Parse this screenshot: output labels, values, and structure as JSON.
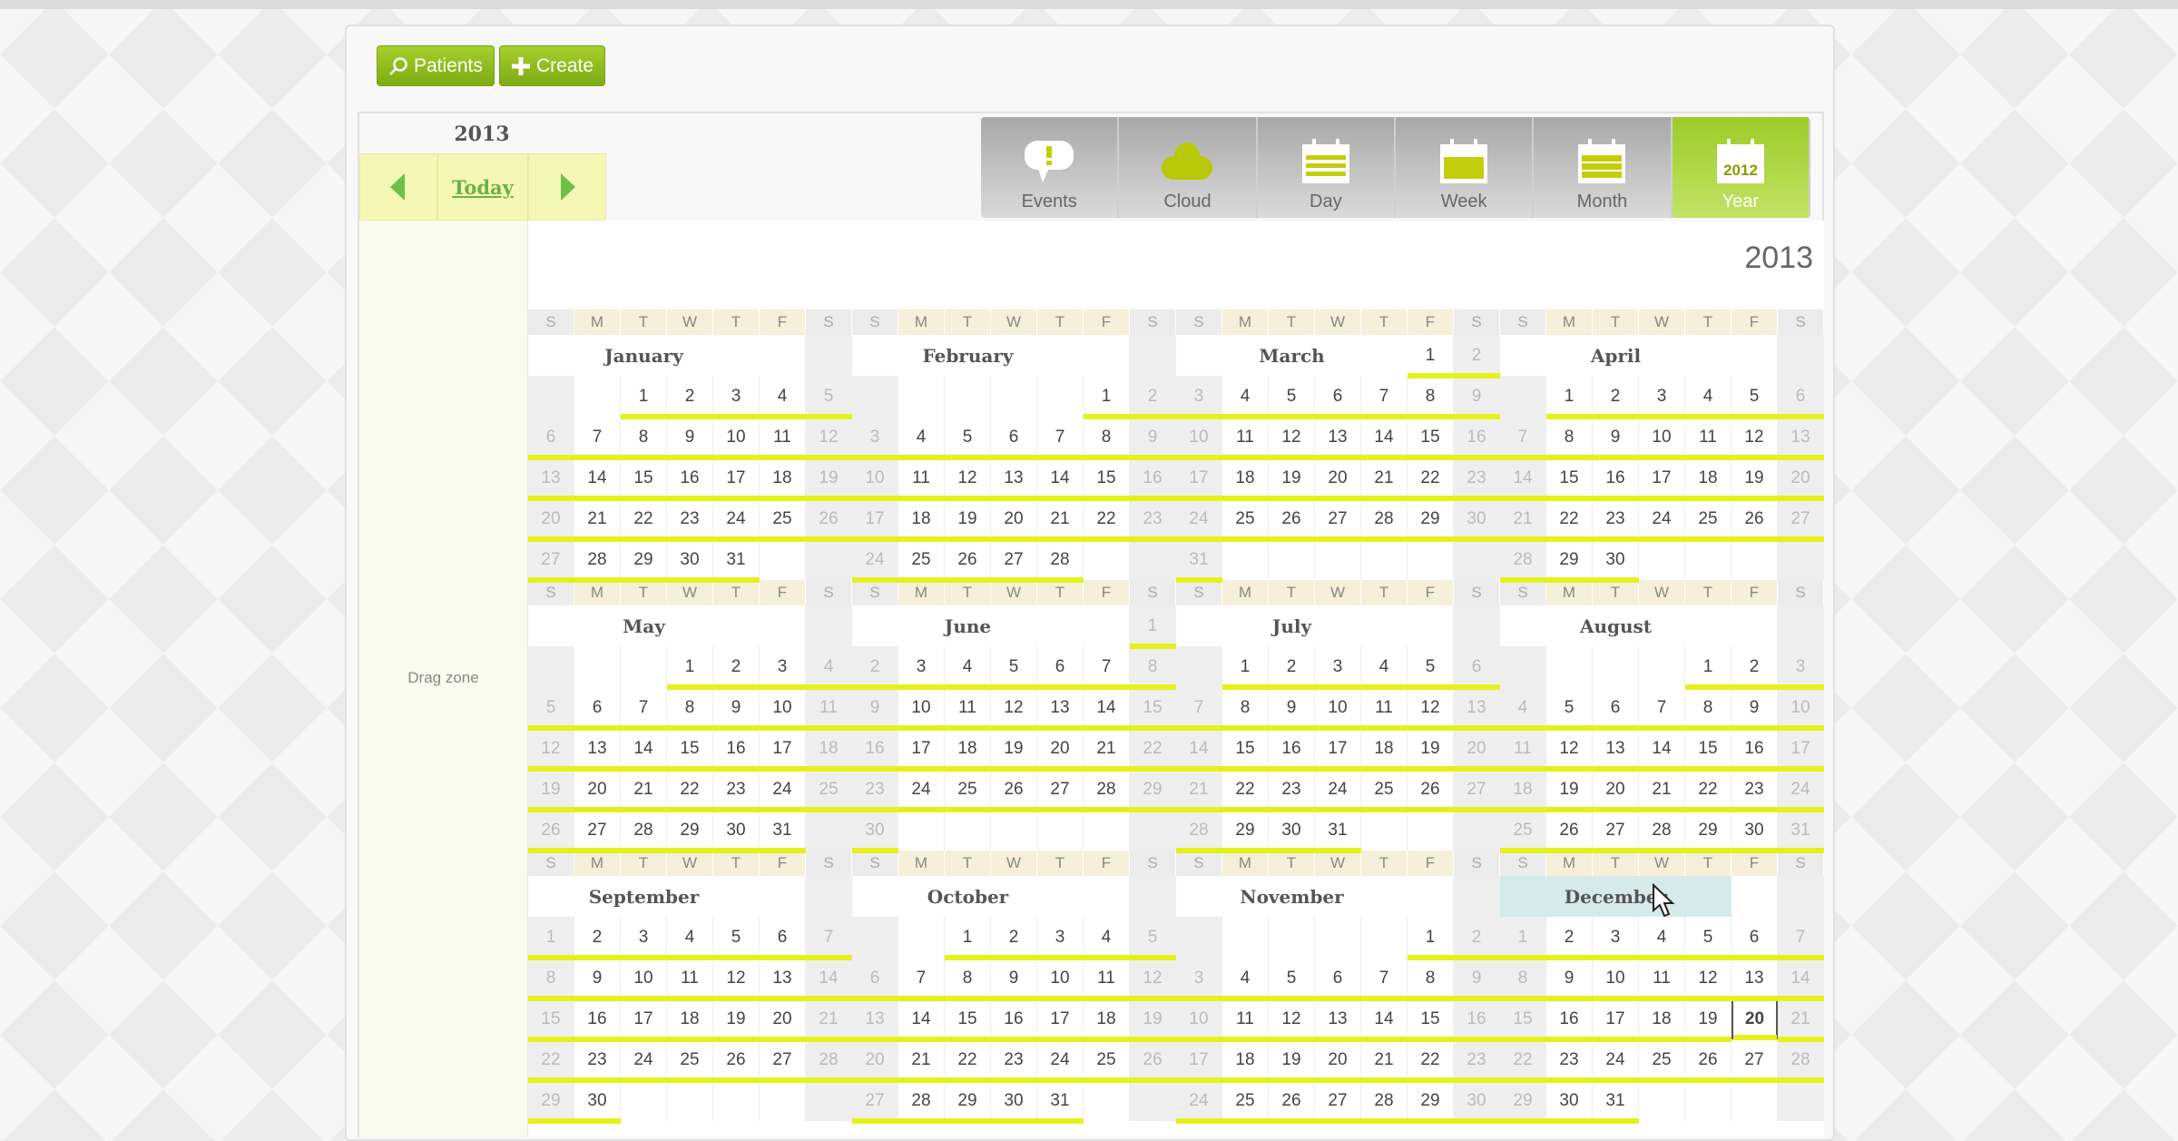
{
  "toolbar": {
    "patients_label": "Patients",
    "create_label": "Create"
  },
  "nav": {
    "year": "2013",
    "today_label": "Today"
  },
  "drag_zone_label": "Drag zone",
  "views": [
    {
      "label": "Events",
      "icon": "speech-bubble-icon"
    },
    {
      "label": "Cloud",
      "icon": "cloud-icon"
    },
    {
      "label": "Day",
      "icon": "calendar-day-icon"
    },
    {
      "label": "Week",
      "icon": "calendar-week-icon"
    },
    {
      "label": "Month",
      "icon": "calendar-month-icon"
    },
    {
      "label": "Year",
      "icon": "calendar-year-icon",
      "icon_text": "2012",
      "active": true
    }
  ],
  "calendar": {
    "title": "2013",
    "year": 2013,
    "weekdays": [
      "S",
      "M",
      "T",
      "W",
      "T",
      "F",
      "S"
    ],
    "months": [
      "January",
      "February",
      "March",
      "April",
      "May",
      "June",
      "July",
      "August",
      "September",
      "October",
      "November",
      "December"
    ],
    "today": {
      "month": 12,
      "day": 20
    },
    "hovered_month": "December"
  },
  "colors": {
    "accent": "#8dbb1e",
    "underline": "#e4f21a",
    "nav_bg": "#f5f8b4"
  }
}
